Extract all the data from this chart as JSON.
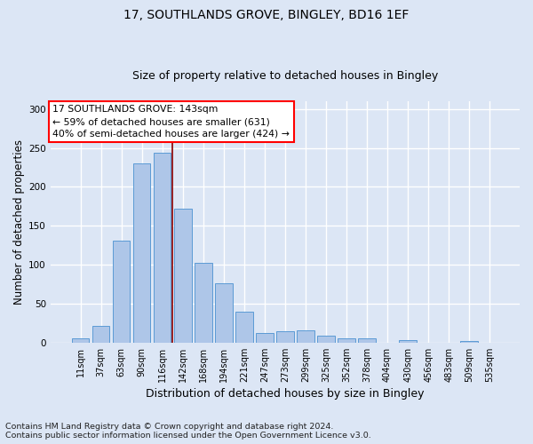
{
  "title1": "17, SOUTHLANDS GROVE, BINGLEY, BD16 1EF",
  "title2": "Size of property relative to detached houses in Bingley",
  "xlabel": "Distribution of detached houses by size in Bingley",
  "ylabel": "Number of detached properties",
  "footnote1": "Contains HM Land Registry data © Crown copyright and database right 2024.",
  "footnote2": "Contains public sector information licensed under the Open Government Licence v3.0.",
  "bar_labels": [
    "11sqm",
    "37sqm",
    "63sqm",
    "90sqm",
    "116sqm",
    "142sqm",
    "168sqm",
    "194sqm",
    "221sqm",
    "247sqm",
    "273sqm",
    "299sqm",
    "325sqm",
    "352sqm",
    "378sqm",
    "404sqm",
    "430sqm",
    "456sqm",
    "483sqm",
    "509sqm",
    "535sqm"
  ],
  "bar_values": [
    5,
    22,
    131,
    230,
    244,
    172,
    102,
    76,
    40,
    12,
    15,
    16,
    9,
    5,
    5,
    0,
    3,
    0,
    0,
    2,
    0
  ],
  "bar_color": "#aec6e8",
  "bar_edge_color": "#5b9bd5",
  "vline_pos": 4.5,
  "vline_color": "#8b0000",
  "annotation_title": "17 SOUTHLANDS GROVE: 143sqm",
  "annotation_line2": "← 59% of detached houses are smaller (631)",
  "annotation_line3": "40% of semi-detached houses are larger (424) →",
  "ylim": [
    0,
    310
  ],
  "yticks": [
    0,
    50,
    100,
    150,
    200,
    250,
    300
  ],
  "bg_color": "#dce6f5",
  "grid_color": "#ffffff",
  "title1_fontsize": 10,
  "title2_fontsize": 9,
  "ylabel_fontsize": 8.5,
  "xlabel_fontsize": 9,
  "tick_fontsize": 7,
  "footnote_fontsize": 6.8,
  "annot_fontsize": 7.8
}
